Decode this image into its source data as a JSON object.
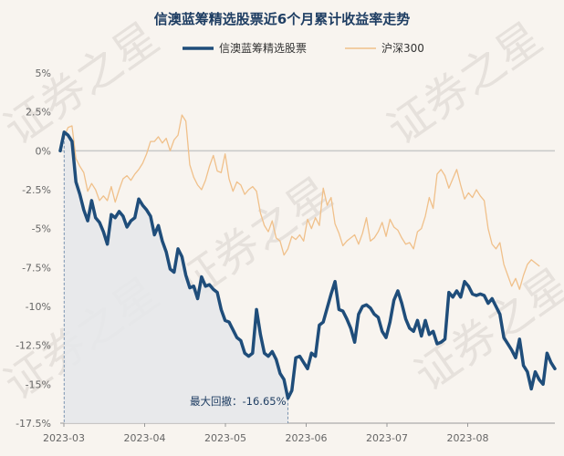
{
  "chart_data": {
    "type": "line",
    "title": "信澳蓝筹精选股票近6个月累计收益率走势",
    "watermark": "证券之星",
    "x_tick_labels": [
      "2023-03",
      "2023-04",
      "2023-05",
      "2023-06",
      "2023-07",
      "2023-08"
    ],
    "y_tick_labels": [
      "5%",
      "2.5%",
      "0%",
      "-2.5%",
      "-5%",
      "-7.5%",
      "-10%",
      "-12.5%",
      "-15%",
      "-17.5%"
    ],
    "ylim": [
      -17.5,
      5
    ],
    "grid": false,
    "legend_position": "top",
    "annotation": "最大回撤：-16.65%",
    "colors": {
      "fund": "#1f4d7a",
      "index": "#f0c08a",
      "drawdown_fill": "#e6e8ea"
    },
    "series": [
      {
        "name": "信澳蓝筹精选股票",
        "values": [
          0,
          1.2,
          1.0,
          0.6,
          -2.0,
          -2.8,
          -3.8,
          -4.5,
          -3.2,
          -4.3,
          -4.6,
          -5.2,
          -6.0,
          -4.1,
          -4.3,
          -3.9,
          -4.2,
          -4.9,
          -4.5,
          -4.3,
          -3.1,
          -3.5,
          -3.8,
          -4.2,
          -5.4,
          -4.8,
          -5.8,
          -6.5,
          -7.6,
          -7.8,
          -6.3,
          -6.8,
          -8.0,
          -8.8,
          -8.7,
          -9.5,
          -8.1,
          -8.7,
          -8.6,
          -8.9,
          -9.1,
          -10.2,
          -10.9,
          -11.0,
          -11.5,
          -12.0,
          -12.2,
          -13.0,
          -13.2,
          -13.0,
          -10.2,
          -11.8,
          -13.0,
          -13.2,
          -12.9,
          -13.4,
          -14.3,
          -14.7,
          -15.9,
          -15.4,
          -13.3,
          -13.2,
          -13.6,
          -14.0,
          -13.0,
          -13.2,
          -11.2,
          -11.0,
          -10.1,
          -9.2,
          -8.4,
          -10.2,
          -10.3,
          -10.8,
          -11.4,
          -12.3,
          -10.5,
          -10.0,
          -9.9,
          -10.1,
          -10.5,
          -10.7,
          -11.6,
          -12.0,
          -11.0,
          -9.6,
          -9.0,
          -9.8,
          -10.8,
          -11.4,
          -11.6,
          -10.9,
          -11.9,
          -10.9,
          -11.8,
          -11.6,
          -12.4,
          -12.3,
          -12.1,
          -9.1,
          -9.4,
          -9.0,
          -9.4,
          -8.4,
          -8.7,
          -9.2,
          -9.3,
          -9.2,
          -9.3,
          -9.8,
          -9.5,
          -10.0,
          -10.5,
          -12.0,
          -12.4,
          -12.8,
          -13.3,
          -12.1,
          -13.8,
          -14.2,
          -15.3,
          -14.2,
          -14.7,
          -15.0,
          -13.0,
          -13.6,
          -14.0
        ]
      },
      {
        "name": "沪深300",
        "values": [
          0,
          0.9,
          1.5,
          1.6,
          -0.5,
          -1.0,
          -1.4,
          -2.6,
          -2.1,
          -2.5,
          -3.2,
          -2.9,
          -3.2,
          -2.3,
          -3.3,
          -2.5,
          -1.8,
          -1.6,
          -1.9,
          -1.5,
          -1.2,
          -0.8,
          -0.2,
          0.6,
          0.6,
          0.9,
          0.5,
          0.8,
          0.0,
          0.7,
          1.0,
          2.3,
          1.9,
          -0.9,
          -1.7,
          -2.2,
          -2.5,
          -1.9,
          -1.0,
          -0.3,
          -1.3,
          -1.4,
          -0.2,
          -1.8,
          -2.6,
          -2.0,
          -2.2,
          -2.8,
          -2.5,
          -2.3,
          -2.6,
          -4.0,
          -4.8,
          -5.2,
          -4.5,
          -5.6,
          -5.8,
          -6.7,
          -6.3,
          -5.5,
          -5.7,
          -5.4,
          -5.8,
          -4.4,
          -5.0,
          -4.3,
          -4.8,
          -2.4,
          -3.5,
          -3.0,
          -4.7,
          -5.3,
          -6.1,
          -5.8,
          -5.6,
          -5.4,
          -6.0,
          -5.3,
          -4.3,
          -5.8,
          -5.6,
          -5.2,
          -4.6,
          -5.5,
          -4.4,
          -4.9,
          -5.1,
          -5.6,
          -6.0,
          -5.9,
          -6.3,
          -5.2,
          -5.0,
          -4.2,
          -3.0,
          -3.7,
          -1.5,
          -1.2,
          -1.6,
          -2.4,
          -1.8,
          -1.2,
          -2.2,
          -3.1,
          -2.7,
          -3.0,
          -2.5,
          -2.9,
          -3.2,
          -5.0,
          -6.0,
          -6.3,
          -5.9,
          -7.3,
          -8.0,
          -8.7,
          -8.2,
          -8.9,
          -8.0,
          -7.3,
          -7.0,
          -7.2,
          -7.4
        ]
      }
    ]
  }
}
